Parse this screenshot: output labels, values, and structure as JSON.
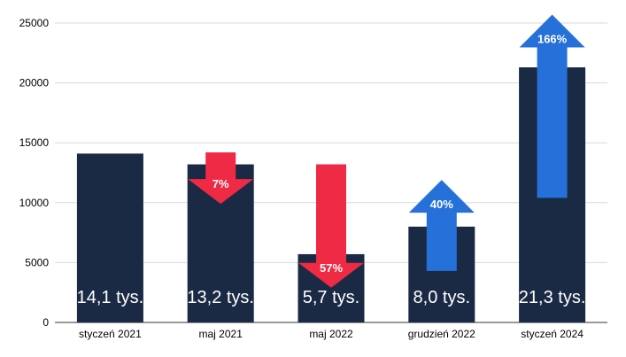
{
  "chart_data": {
    "type": "bar",
    "title": "",
    "xlabel": "",
    "ylabel": "",
    "ylim": [
      0,
      25000
    ],
    "yticks": [
      0,
      5000,
      10000,
      15000,
      20000,
      25000
    ],
    "grid": true,
    "categories": [
      "styczeń 2021",
      "maj 2021",
      "maj 2022",
      "grudzień 2022",
      "styczeń 2024"
    ],
    "values": [
      14100,
      13200,
      5700,
      8000,
      21300
    ],
    "bar_labels": [
      "14,1 tys.",
      "13,2 tys.",
      "5,7 tys.",
      "8,0 tys.",
      "21,3 tys."
    ],
    "annotations": [
      {
        "category": "maj 2021",
        "direction": "down",
        "label": "7%",
        "from": 14200,
        "to": 9900
      },
      {
        "category": "maj 2022",
        "direction": "down",
        "label": "57%",
        "from": 13200,
        "to": 2900
      },
      {
        "category": "grudzień 2022",
        "direction": "up",
        "label": "40%",
        "from": 4300,
        "to": 11900
      },
      {
        "category": "styczeń 2024",
        "direction": "up",
        "label": "166%",
        "from": 10400,
        "to": 25700
      }
    ]
  },
  "colors": {
    "bar": "#1b2a44",
    "decrease": "#ee2a44",
    "increase": "#2671d9",
    "grid": "#d9d9d9"
  }
}
